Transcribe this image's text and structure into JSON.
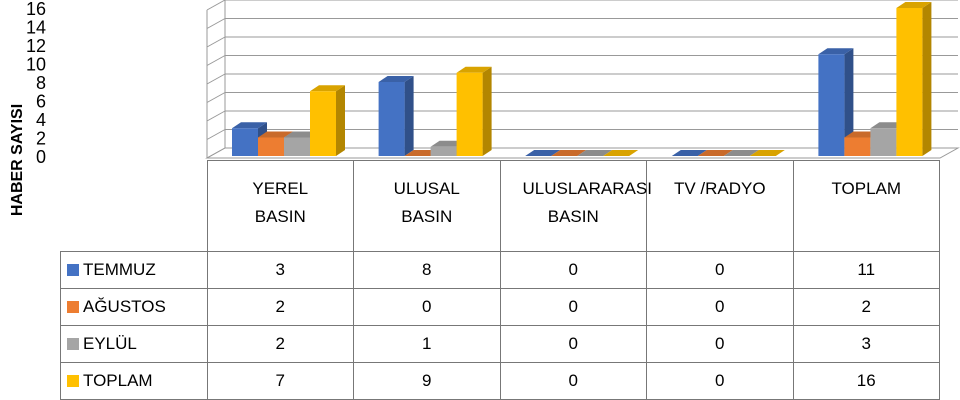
{
  "chart_data": {
    "type": "bar3d",
    "y_axis_label": "HABER SAYISI",
    "categories": [
      "YEREL BASIN",
      "ULUSAL BASIN",
      "ULUSLARARASI BASIN",
      "TV /RADYO",
      "TOPLAM"
    ],
    "series": [
      {
        "name": "TEMMUZ",
        "color": "#4472c4",
        "values": [
          3,
          8,
          0,
          0,
          11
        ]
      },
      {
        "name": "AĞUSTOS",
        "color": "#ed7d31",
        "values": [
          2,
          0,
          0,
          0,
          2
        ]
      },
      {
        "name": "EYLÜL",
        "color": "#a5a5a5",
        "values": [
          2,
          1,
          0,
          0,
          3
        ]
      },
      {
        "name": "TOPLAM",
        "color": "#ffc000",
        "values": [
          7,
          9,
          0,
          0,
          16
        ]
      }
    ],
    "ylim": [
      0,
      16
    ],
    "yticks": [
      0,
      2,
      4,
      6,
      8,
      10,
      12,
      14,
      16
    ],
    "grid": true
  }
}
